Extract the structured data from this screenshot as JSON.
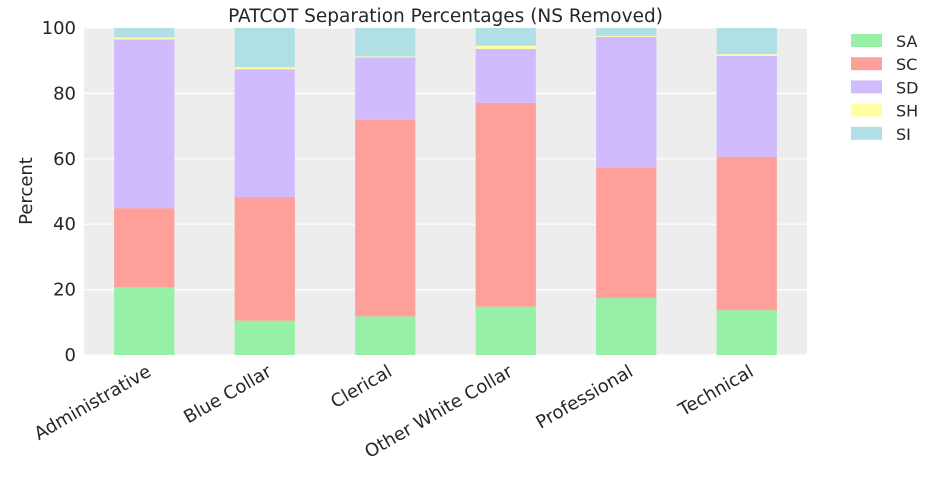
{
  "chart_data": {
    "type": "bar",
    "stacked": true,
    "title": "PATCOT Separation Percentages (NS Removed)",
    "xlabel": "",
    "ylabel": "Percent",
    "ylim": [
      0,
      100
    ],
    "yticks": [
      0,
      20,
      40,
      60,
      80,
      100
    ],
    "grid": true,
    "legend_position": "outside-top-right",
    "categories": [
      "Administrative",
      "Blue Collar",
      "Clerical",
      "Other White Collar",
      "Professional",
      "Technical"
    ],
    "series": [
      {
        "name": "SA",
        "color": "#96f0a5",
        "values": [
          20.7,
          10.5,
          11.8,
          14.8,
          17.4,
          13.7
        ]
      },
      {
        "name": "SC",
        "color": "#ff9f9a",
        "values": [
          24.2,
          37.8,
          60.1,
          62.3,
          40.0,
          46.9
        ]
      },
      {
        "name": "SD",
        "color": "#d1bbff",
        "values": [
          51.6,
          39.1,
          19.1,
          16.5,
          39.9,
          30.9
        ]
      },
      {
        "name": "SH",
        "color": "#fffea3",
        "values": [
          0.6,
          0.6,
          0.3,
          1.0,
          0.3,
          0.5
        ]
      },
      {
        "name": "SI",
        "color": "#b0e0e6",
        "values": [
          2.9,
          12.0,
          8.7,
          5.4,
          2.4,
          8.0
        ]
      }
    ]
  }
}
